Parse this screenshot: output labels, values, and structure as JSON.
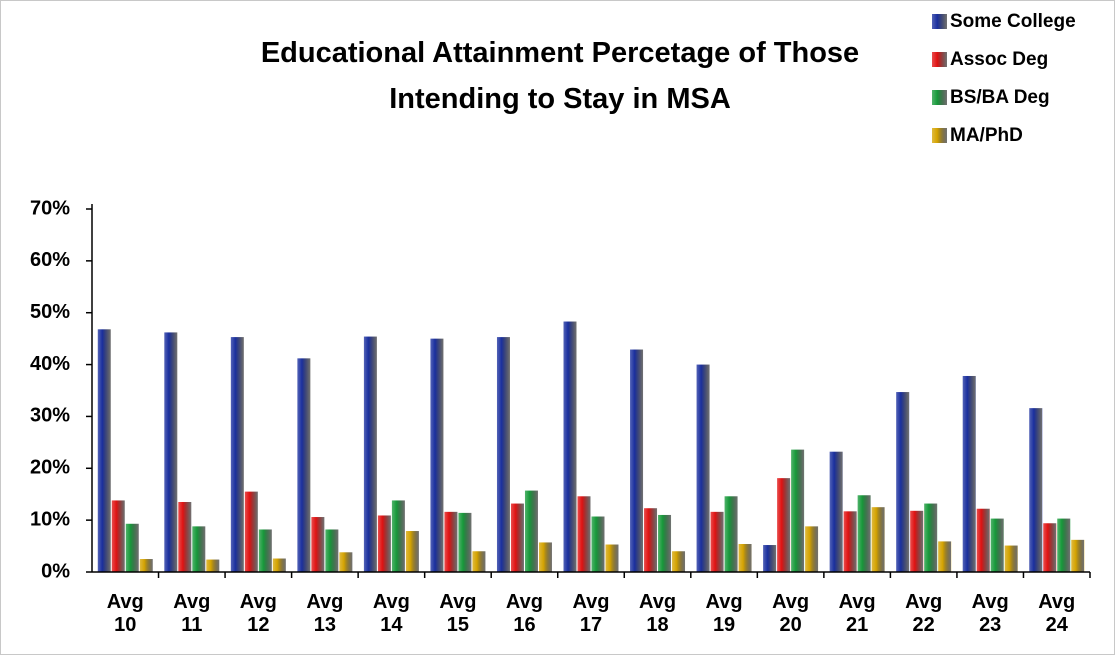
{
  "chart_data": {
    "type": "bar",
    "title": "Educational Attainment Percetage of Those Intending to Stay in MSA",
    "categories": [
      "Avg 10",
      "Avg 11",
      "Avg 12",
      "Avg 13",
      "Avg 14",
      "Avg 15",
      "Avg 16",
      "Avg 17",
      "Avg 18",
      "Avg 19",
      "Avg 20",
      "Avg 21",
      "Avg 22",
      "Avg 23",
      "Avg 24"
    ],
    "series": [
      {
        "name": "Some College",
        "color": "#1a2f9e",
        "values": [
          46.8,
          46.2,
          45.3,
          41.2,
          45.4,
          45.0,
          45.3,
          48.3,
          42.9,
          40.0,
          5.2,
          23.2,
          34.7,
          37.8,
          31.6
        ]
      },
      {
        "name": "Assoc Deg",
        "color": "#e01212",
        "values": [
          13.8,
          13.5,
          15.5,
          10.6,
          10.9,
          11.6,
          13.2,
          14.6,
          12.3,
          11.6,
          18.1,
          11.7,
          11.8,
          12.2,
          9.4
        ]
      },
      {
        "name": "BS/BA Deg",
        "color": "#17993a",
        "values": [
          9.3,
          8.8,
          8.2,
          8.2,
          13.8,
          11.4,
          15.7,
          10.7,
          11.0,
          14.6,
          23.6,
          14.8,
          13.2,
          10.3,
          10.3
        ]
      },
      {
        "name": "MA/PhD",
        "color": "#d4a300",
        "values": [
          2.5,
          2.4,
          2.6,
          3.8,
          7.9,
          4.0,
          5.7,
          5.3,
          4.0,
          5.4,
          8.8,
          12.5,
          5.9,
          5.1,
          6.2
        ]
      }
    ],
    "ylim": [
      0,
      70
    ],
    "yticks": [
      {
        "value": 0,
        "label": "0%"
      },
      {
        "value": 10,
        "label": "10%"
      },
      {
        "value": 20,
        "label": "20%"
      },
      {
        "value": 30,
        "label": "30%"
      },
      {
        "value": 40,
        "label": "40%"
      },
      {
        "value": 50,
        "label": "50%"
      },
      {
        "value": 60,
        "label": "60%"
      },
      {
        "value": 70,
        "label": "70%"
      }
    ],
    "grid": false,
    "legend": "top-right"
  }
}
